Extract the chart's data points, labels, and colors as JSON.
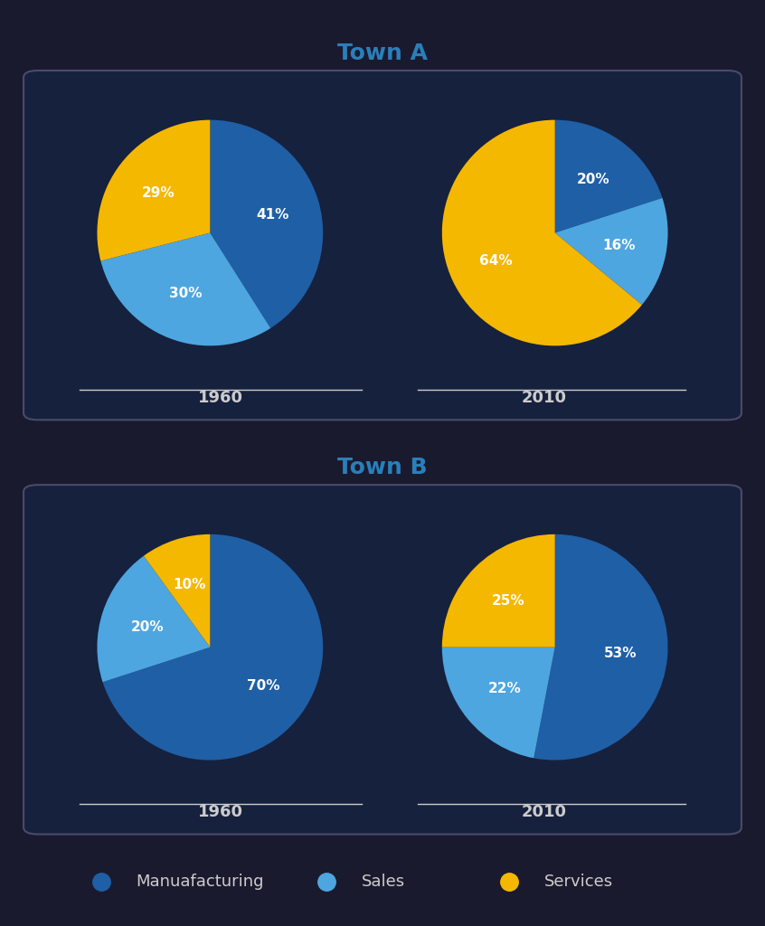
{
  "title_a": "Town A",
  "title_b": "Town B",
  "background_color": "#1a1a2e",
  "box_facecolor": "#16213e",
  "box_edgecolor": "#4a4a6a",
  "title_color": "#2a7fba",
  "label_color": "#cccccc",
  "colors": {
    "manufacturing": "#1f5fa6",
    "sales": "#4da6e0",
    "services": "#f5b800"
  },
  "town_a": {
    "1960": {
      "manufacturing": 41,
      "sales": 30,
      "services": 29
    },
    "2010": {
      "manufacturing": 20,
      "sales": 16,
      "services": 64
    }
  },
  "town_b": {
    "1960": {
      "manufacturing": 70,
      "sales": 20,
      "services": 10
    },
    "2010": {
      "manufacturing": 53,
      "sales": 22,
      "services": 25
    }
  },
  "legend_labels": [
    "Manuafacturing",
    "Sales",
    "Services"
  ],
  "legend_colors": [
    "#1f5fa6",
    "#4da6e0",
    "#f5b800"
  ],
  "pie_label_color": "white",
  "pie_label_fontsize": 11,
  "title_fontsize": 18,
  "year_fontsize": 13,
  "legend_fontsize": 13
}
